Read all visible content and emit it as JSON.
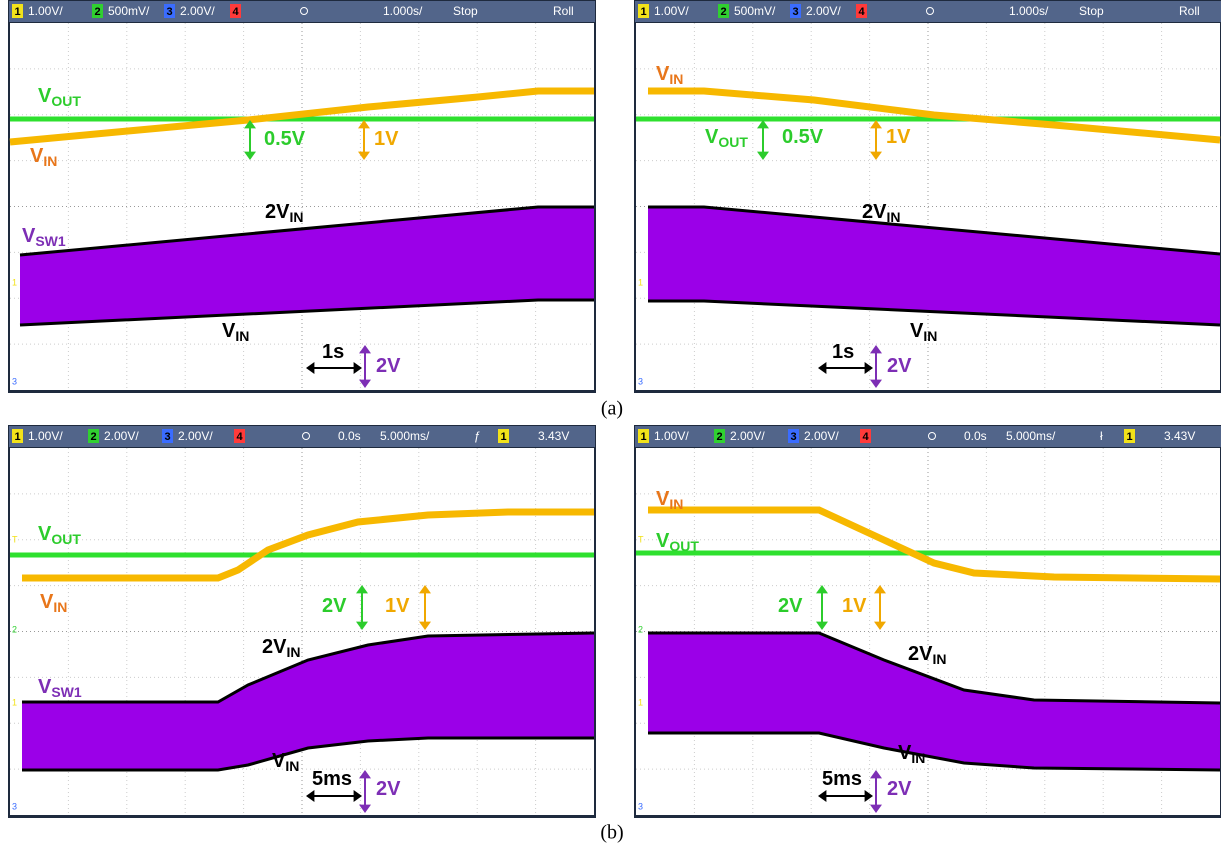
{
  "captions": [
    "(a)",
    "(b)"
  ],
  "panels": [
    {
      "header": [
        {
          "text": "1",
          "channel": 1
        },
        {
          "text": "1.00V/"
        },
        {
          "text": "2",
          "channel": 2
        },
        {
          "text": "500mV/"
        },
        {
          "text": "3",
          "channel": 3
        },
        {
          "text": "2.00V/"
        },
        {
          "text": "4",
          "channel": 4
        },
        {
          "text": "1.000s/"
        },
        {
          "text": "Stop"
        },
        {
          "text": "Roll"
        }
      ],
      "markers": [
        {
          "text": "1",
          "channel": 1
        },
        {
          "text": "3",
          "channel": 3
        }
      ],
      "annotations": [
        {
          "text": "V",
          "sub": "OUT",
          "color": "#2ccc2c"
        },
        {
          "text": "V",
          "sub": "IN",
          "color": "#e8761a"
        },
        {
          "text": "V",
          "sub": "SW1",
          "color": "#7d2eb5"
        },
        {
          "text": "2V",
          "sub": "IN",
          "color": "#000000"
        },
        {
          "text": "V",
          "sub": "IN",
          "color": "#000000"
        },
        {
          "text": "0.5V",
          "color": "#2ccc2c"
        },
        {
          "text": "1V",
          "color": "#f0a800"
        },
        {
          "text": "1s",
          "color": "#000000"
        },
        {
          "text": "2V",
          "color": "#7d2eb5"
        }
      ]
    },
    {
      "header": [
        {
          "text": "1",
          "channel": 1
        },
        {
          "text": "1.00V/"
        },
        {
          "text": "2",
          "channel": 2
        },
        {
          "text": "500mV/"
        },
        {
          "text": "3",
          "channel": 3
        },
        {
          "text": "2.00V/"
        },
        {
          "text": "4",
          "channel": 4
        },
        {
          "text": "1.000s/"
        },
        {
          "text": "Stop"
        },
        {
          "text": "Roll"
        }
      ],
      "markers": [
        {
          "text": "1",
          "channel": 1
        },
        {
          "text": "3",
          "channel": 3
        }
      ],
      "annotations": [
        {
          "text": "V",
          "sub": "IN",
          "color": "#e8761a"
        },
        {
          "text": "V",
          "sub": "OUT",
          "color": "#2ccc2c"
        },
        {
          "text": "0.5V",
          "color": "#2ccc2c"
        },
        {
          "text": "1V",
          "color": "#f0a800"
        },
        {
          "text": "2V",
          "sub": "IN",
          "color": "#000000"
        },
        {
          "text": "V",
          "sub": "IN",
          "color": "#000000"
        },
        {
          "text": "1s",
          "color": "#000000"
        },
        {
          "text": "2V",
          "color": "#7d2eb5"
        }
      ]
    },
    {
      "header": [
        {
          "text": "1",
          "channel": 1
        },
        {
          "text": "1.00V/"
        },
        {
          "text": "2",
          "channel": 2
        },
        {
          "text": "2.00V/"
        },
        {
          "text": "3",
          "channel": 3
        },
        {
          "text": "2.00V/"
        },
        {
          "text": "4",
          "channel": 4
        },
        {
          "text": "0.0s"
        },
        {
          "text": "5.000ms/"
        },
        {
          "text": "ƒ"
        },
        {
          "text": "1",
          "channel": 1
        },
        {
          "text": "3.43V"
        }
      ],
      "markers": [
        {
          "text": "T",
          "channel": 1
        },
        {
          "text": "2",
          "channel": 2
        },
        {
          "text": "1",
          "channel": 1
        },
        {
          "text": "3",
          "channel": 3
        }
      ],
      "annotations": [
        {
          "text": "V",
          "sub": "OUT",
          "color": "#2ccc2c"
        },
        {
          "text": "V",
          "sub": "IN",
          "color": "#e8761a"
        },
        {
          "text": "2V",
          "color": "#2ccc2c"
        },
        {
          "text": "1V",
          "color": "#f0a800"
        },
        {
          "text": "2V",
          "sub": "IN",
          "color": "#000000"
        },
        {
          "text": "V",
          "sub": "SW1",
          "color": "#7d2eb5"
        },
        {
          "text": "V",
          "sub": "IN",
          "color": "#000000"
        },
        {
          "text": "5ms",
          "color": "#000000"
        },
        {
          "text": "2V",
          "color": "#7d2eb5"
        }
      ]
    },
    {
      "header": [
        {
          "text": "1",
          "channel": 1
        },
        {
          "text": "1.00V/"
        },
        {
          "text": "2",
          "channel": 2
        },
        {
          "text": "2.00V/"
        },
        {
          "text": "3",
          "channel": 3
        },
        {
          "text": "2.00V/"
        },
        {
          "text": "4",
          "channel": 4
        },
        {
          "text": "0.0s"
        },
        {
          "text": "5.000ms/"
        },
        {
          "text": "ł"
        },
        {
          "text": "1",
          "channel": 1
        },
        {
          "text": "3.43V"
        }
      ],
      "markers": [
        {
          "text": "T",
          "channel": 1
        },
        {
          "text": "2",
          "channel": 2
        },
        {
          "text": "1",
          "channel": 1
        },
        {
          "text": "3",
          "channel": 3
        }
      ],
      "annotations": [
        {
          "text": "V",
          "sub": "IN",
          "color": "#e8761a"
        },
        {
          "text": "V",
          "sub": "OUT",
          "color": "#2ccc2c"
        },
        {
          "text": "2V",
          "color": "#2ccc2c"
        },
        {
          "text": "1V",
          "color": "#f0a800"
        },
        {
          "text": "2V",
          "sub": "IN",
          "color": "#000000"
        },
        {
          "text": "V",
          "sub": "IN",
          "color": "#000000"
        },
        {
          "text": "5ms",
          "color": "#000000"
        },
        {
          "text": "2V",
          "color": "#7d2eb5"
        }
      ]
    }
  ]
}
